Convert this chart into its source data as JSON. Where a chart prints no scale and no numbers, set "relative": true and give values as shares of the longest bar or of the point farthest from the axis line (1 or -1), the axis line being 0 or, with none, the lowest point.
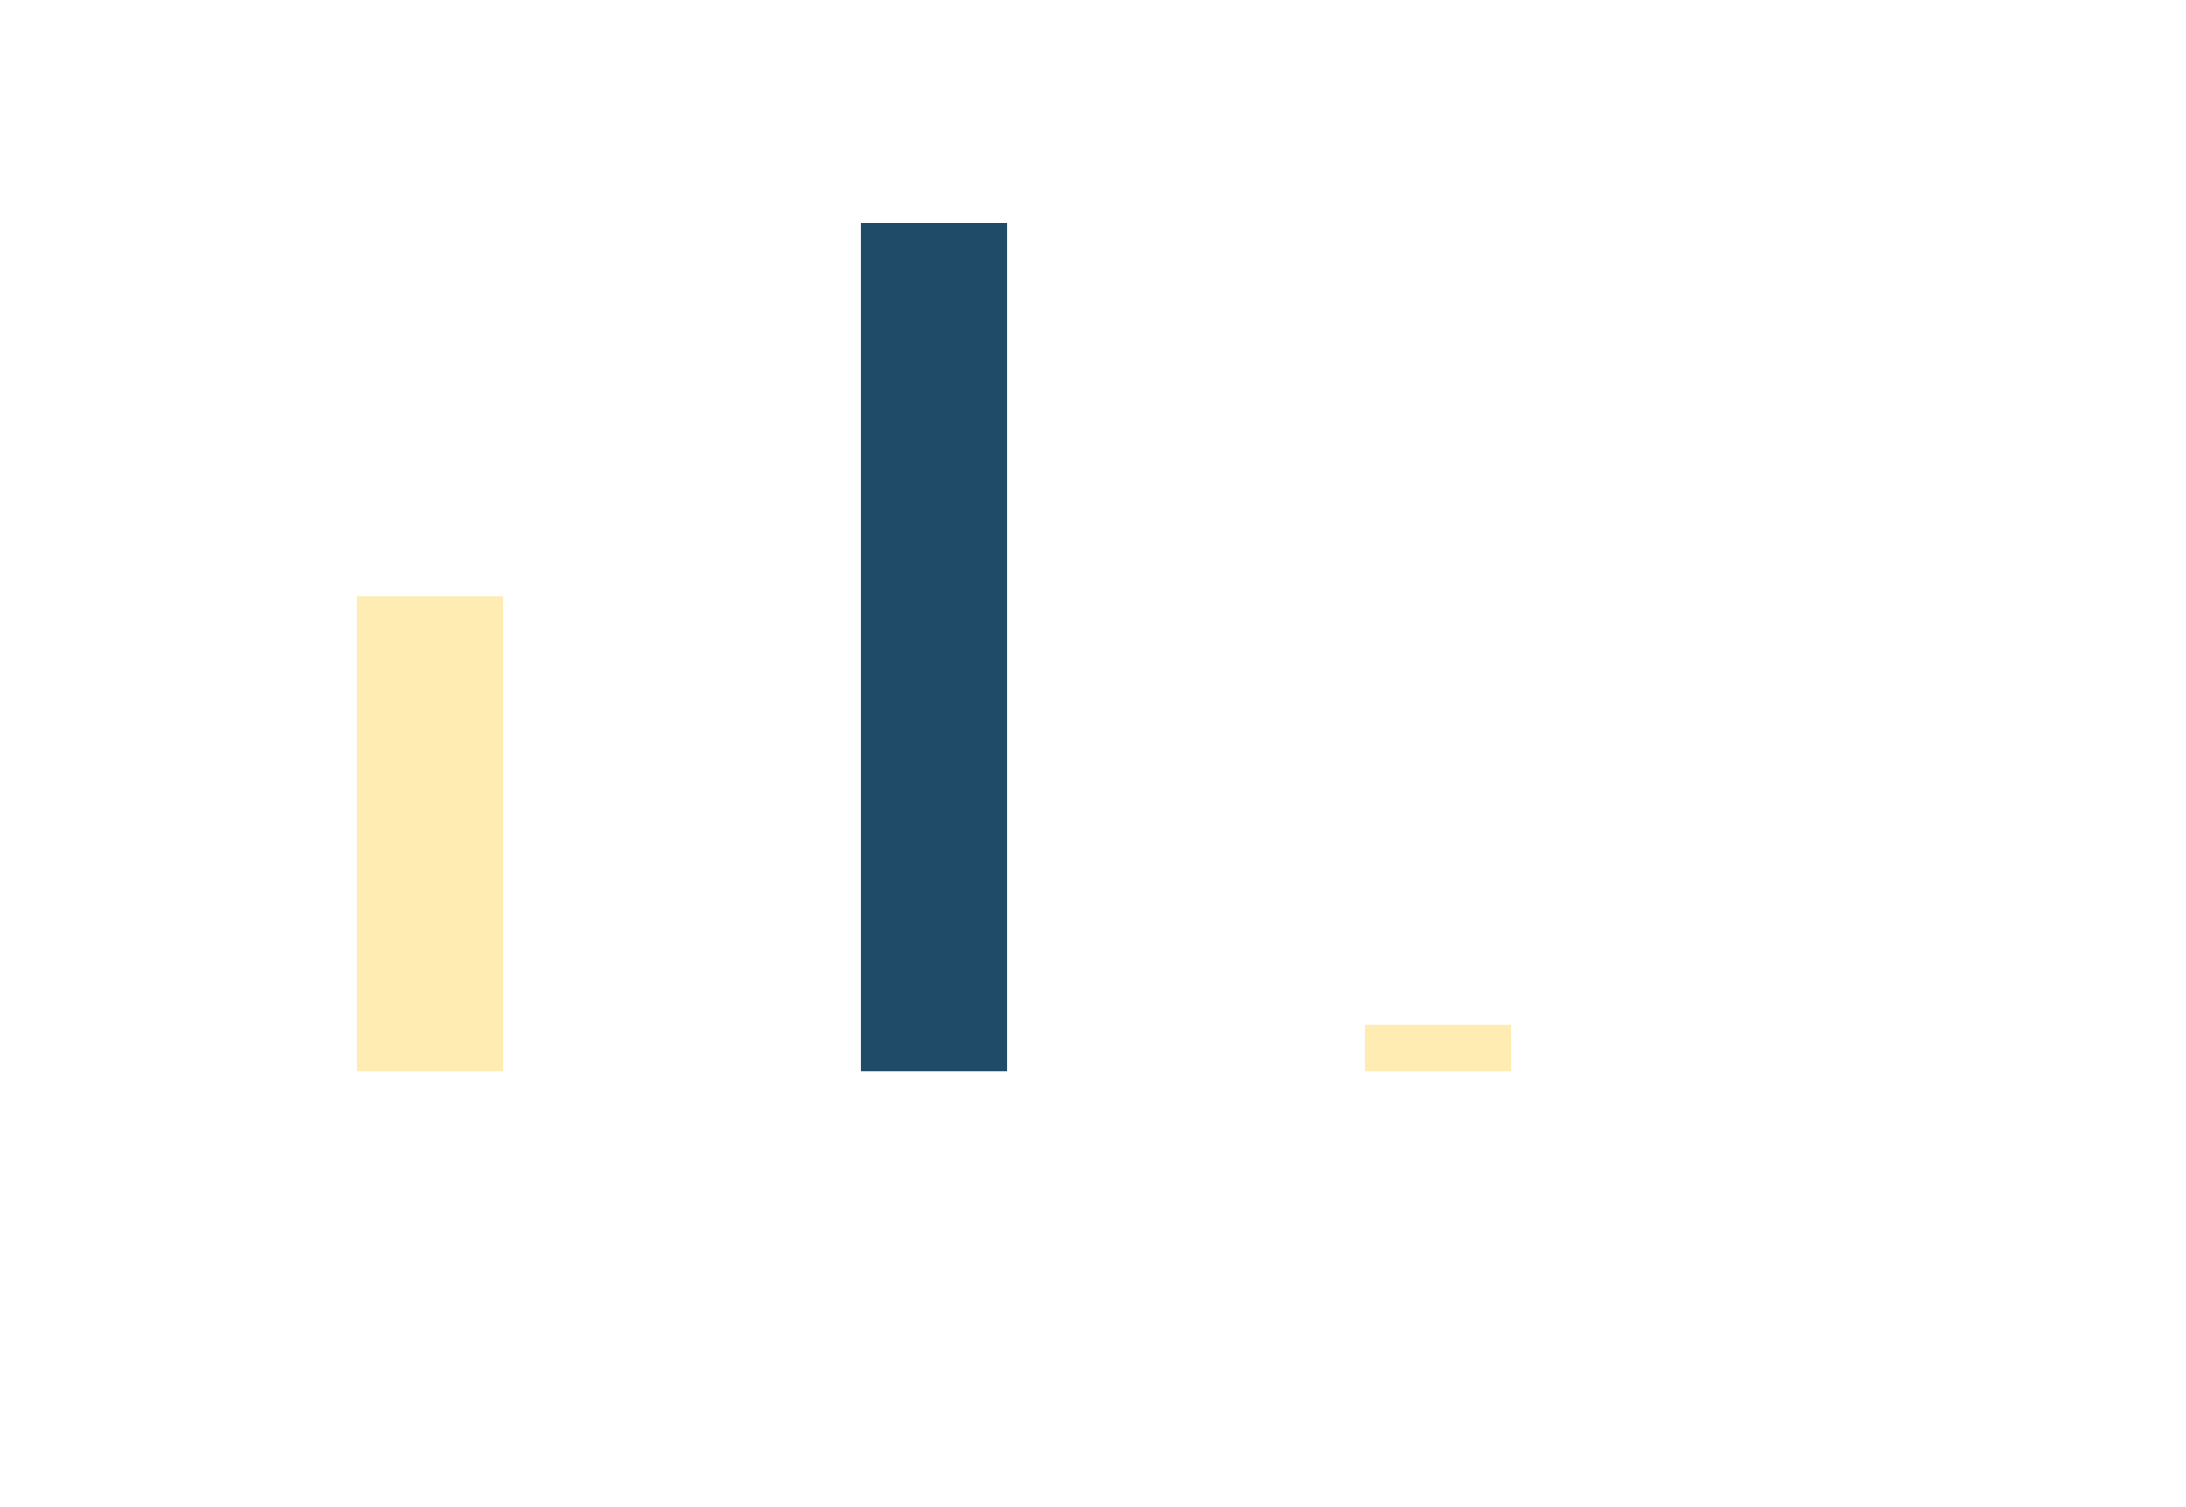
{
  "chart_data": {
    "type": "bar",
    "relative": true,
    "categories": [
      null,
      null,
      null
    ],
    "values": [
      0.56,
      1,
      0.055
    ],
    "colors": [
      "#feecb3",
      "#1f4b69",
      "#feecb3"
    ],
    "tick_labels": false
  }
}
